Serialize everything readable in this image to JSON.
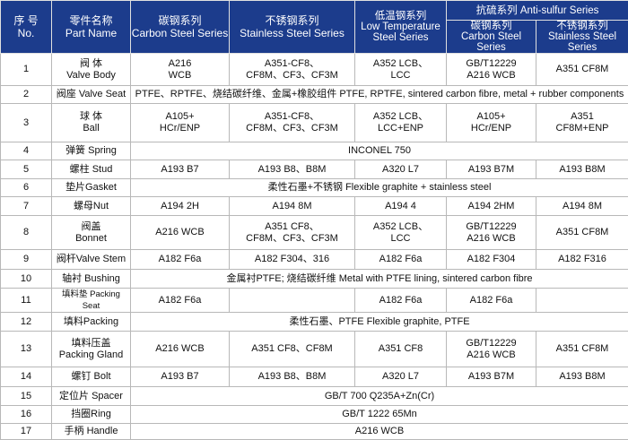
{
  "header": {
    "no": "序 号\nNo.",
    "part": "零件名称\nPart Name",
    "carbon": "碳钢系列\nCarbon Steel Series",
    "stainless": "不锈钢系列\nStainless Steel Series",
    "lowtemp": "低温钢系列\nLow Temperature\nSteel Series",
    "antisulfur": "抗硫系列 Anti-sulfur Series",
    "as_carbon": "碳钢系列\nCarbon Steel Series",
    "as_stainless": "不锈钢系列\nStainless Steel Series"
  },
  "colors": {
    "header_bg": "#1c3c8c",
    "header_text": "#ffffff",
    "grid": "#b8b8b8"
  },
  "rows": [
    {
      "no": "1",
      "part": "阀 体\nValve Body",
      "cells": [
        {
          "text": "A216\nWCB"
        },
        {
          "text": "A351-CF8、\nCF8M、CF3、CF3M"
        },
        {
          "text": "A352 LCB、\nLCC"
        },
        {
          "text": "GB/T12229\nA216 WCB"
        },
        {
          "text": "A351 CF8M"
        }
      ]
    },
    {
      "no": "2",
      "part": "阀座 Valve Seat",
      "cells": [
        {
          "text": "PTFE、RPTFE、烧结碳纤维、金属+橡胶组件  PTFE, RPTFE, sintered carbon fibre, metal + rubber components",
          "span": 5
        }
      ]
    },
    {
      "no": "3",
      "part": "球 体\nBall",
      "cells": [
        {
          "text": "A105+\nHCr/ENP"
        },
        {
          "text": "A351-CF8、\nCF8M、CF3、CF3M"
        },
        {
          "text": "A352 LCB、\nLCC+ENP"
        },
        {
          "text": "A105+\nHCr/ENP"
        },
        {
          "text": "A351\nCF8M+ENP"
        }
      ]
    },
    {
      "no": "4",
      "part": "弹簧 Spring",
      "cells": [
        {
          "text": "INCONEL 750",
          "span": 5
        }
      ]
    },
    {
      "no": "5",
      "part": "螺柱 Stud",
      "cells": [
        {
          "text": "A193 B7"
        },
        {
          "text": "A193 B8、B8M"
        },
        {
          "text": "A320 L7"
        },
        {
          "text": "A193 B7M"
        },
        {
          "text": "A193 B8M"
        }
      ]
    },
    {
      "no": "6",
      "part": "垫片Gasket",
      "cells": [
        {
          "text": "柔性石墨+不锈钢  Flexible graphite + stainless steel",
          "span": 5
        }
      ]
    },
    {
      "no": "7",
      "part": "螺母Nut",
      "cells": [
        {
          "text": "A194 2H"
        },
        {
          "text": "A194 8M"
        },
        {
          "text": "A194 4"
        },
        {
          "text": "A194 2HM"
        },
        {
          "text": "A194 8M"
        }
      ]
    },
    {
      "no": "8",
      "part": "阀盖\nBonnet",
      "cells": [
        {
          "text": "A216 WCB"
        },
        {
          "text": "A351  CF8、\nCF8M、CF3、CF3M"
        },
        {
          "text": "A352 LCB、\nLCC"
        },
        {
          "text": "GB/T12229\nA216 WCB"
        },
        {
          "text": "A351 CF8M"
        }
      ]
    },
    {
      "no": "9",
      "part": "阀杆Valve Stem",
      "cells": [
        {
          "text": "A182 F6a"
        },
        {
          "text": "A182 F304、316"
        },
        {
          "text": "A182 F6a"
        },
        {
          "text": "A182 F304"
        },
        {
          "text": "A182 F316"
        }
      ]
    },
    {
      "no": "10",
      "part": "轴衬 Bushing",
      "cells": [
        {
          "text": "金属衬PTFE;  烧结碳纤维  Metal with PTFE lining, sintered carbon fibre",
          "span": 5
        }
      ]
    },
    {
      "no": "11",
      "part": "填料垫 Packing Seat",
      "cells": [
        {
          "text": "A182 F6a"
        },
        {
          "text": ""
        },
        {
          "text": "A182 F6a"
        },
        {
          "text": "A182 F6a"
        },
        {
          "text": ""
        }
      ]
    },
    {
      "no": "12",
      "part": "填料Packing",
      "cells": [
        {
          "text": "柔性石墨、PTFE   Flexible graphite, PTFE",
          "span": 5
        }
      ]
    },
    {
      "no": "13",
      "part": "填料压盖\nPacking Gland",
      "cells": [
        {
          "text": "A216 WCB"
        },
        {
          "text": "A351 CF8、CF8M"
        },
        {
          "text": "A351 CF8"
        },
        {
          "text": "GB/T12229\nA216 WCB"
        },
        {
          "text": "A351 CF8M"
        }
      ]
    },
    {
      "no": "14",
      "part": "螺钉 Bolt",
      "cells": [
        {
          "text": "A193 B7"
        },
        {
          "text": "A193 B8、B8M"
        },
        {
          "text": "A320 L7"
        },
        {
          "text": "A193 B7M"
        },
        {
          "text": "A193 B8M"
        }
      ]
    },
    {
      "no": "15",
      "part": "定位片 Spacer",
      "cells": [
        {
          "text": "GB/T 700 Q235A+Zn(Cr)",
          "span": 5
        }
      ]
    },
    {
      "no": "16",
      "part": "挡圈Ring",
      "cells": [
        {
          "text": "GB/T 1222 65Mn",
          "span": 5
        }
      ]
    },
    {
      "no": "17",
      "part": "手柄 Handle",
      "cells": [
        {
          "text": "A216 WCB",
          "span": 5
        }
      ]
    }
  ]
}
